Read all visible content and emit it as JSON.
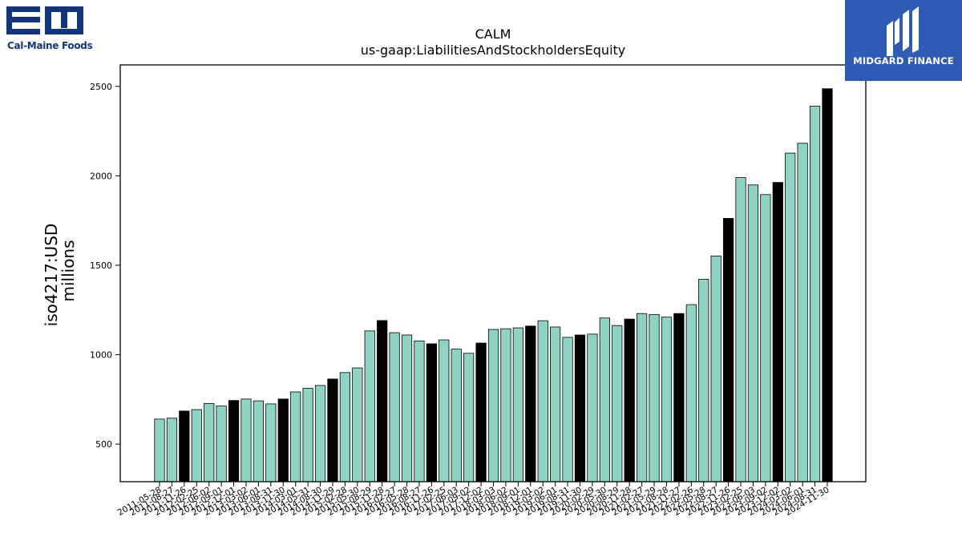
{
  "logos": {
    "left_text": "Cal-Maine Foods",
    "right_text": "MIDGARD FINANCE"
  },
  "chart_data": {
    "type": "bar",
    "title": "CALM",
    "subtitle": "us-gaap:LiabilitiesAndStockholdersEquity",
    "ylabel": "iso4217:USD",
    "ylabel2": "millions",
    "xlabel": "",
    "ylim": [
      290,
      2620
    ],
    "yticks": [
      500,
      1000,
      1500,
      2000,
      2500
    ],
    "grid": false,
    "legend": "none",
    "colors": {
      "default": "#8fd3c6",
      "highlight": "#000000"
    },
    "categories": [
      "2011-05-28",
      "2011-08-27",
      "2011-11-26",
      "2012-02-25",
      "2012-06-02",
      "2012-09-01",
      "2012-12-01",
      "2013-03-02",
      "2013-06-01",
      "2013-08-31",
      "2013-11-30",
      "2014-03-01",
      "2014-05-31",
      "2014-08-30",
      "2014-11-29",
      "2015-02-28",
      "2015-05-30",
      "2015-08-29",
      "2015-11-28",
      "2016-02-27",
      "2016-05-28",
      "2016-08-27",
      "2016-11-26",
      "2017-02-25",
      "2017-06-03",
      "2017-09-02",
      "2017-12-02",
      "2018-03-03",
      "2018-06-02",
      "2018-09-01",
      "2018-12-01",
      "2019-03-02",
      "2019-06-01",
      "2019-08-31",
      "2019-11-30",
      "2020-02-29",
      "2020-05-30",
      "2020-08-29",
      "2020-11-28",
      "2021-02-27",
      "2021-05-29",
      "2021-08-28",
      "2021-11-27",
      "2022-02-26",
      "2022-05-28",
      "2022-08-27",
      "2022-11-26",
      "2023-02-25",
      "2023-06-03",
      "2023-09-02",
      "2023-12-02",
      "2024-03-02",
      "2024-06-01",
      "2024-08-31",
      "2024-11-30"
    ],
    "values": [
      640,
      645,
      685,
      693,
      727,
      713,
      744,
      752,
      742,
      725,
      752,
      792,
      812,
      828,
      864,
      900,
      926,
      1133,
      1191,
      1123,
      1110,
      1077,
      1061,
      1083,
      1031,
      1008,
      1065,
      1141,
      1145,
      1150,
      1160,
      1190,
      1155,
      1097,
      1110,
      1115,
      1205,
      1163,
      1199,
      1230,
      1225,
      1210,
      1230,
      1280,
      1422,
      1552,
      1762,
      1990,
      1949,
      1895,
      1963,
      2127,
      2182,
      2389,
      2487
    ],
    "highlight": [
      false,
      false,
      true,
      false,
      false,
      false,
      true,
      false,
      false,
      false,
      true,
      false,
      false,
      false,
      true,
      false,
      false,
      false,
      true,
      false,
      false,
      false,
      true,
      false,
      false,
      false,
      true,
      false,
      false,
      false,
      true,
      false,
      false,
      false,
      true,
      false,
      false,
      false,
      true,
      false,
      false,
      false,
      true,
      false,
      false,
      false,
      true,
      false,
      false,
      false,
      true,
      false,
      false,
      false,
      true
    ]
  }
}
